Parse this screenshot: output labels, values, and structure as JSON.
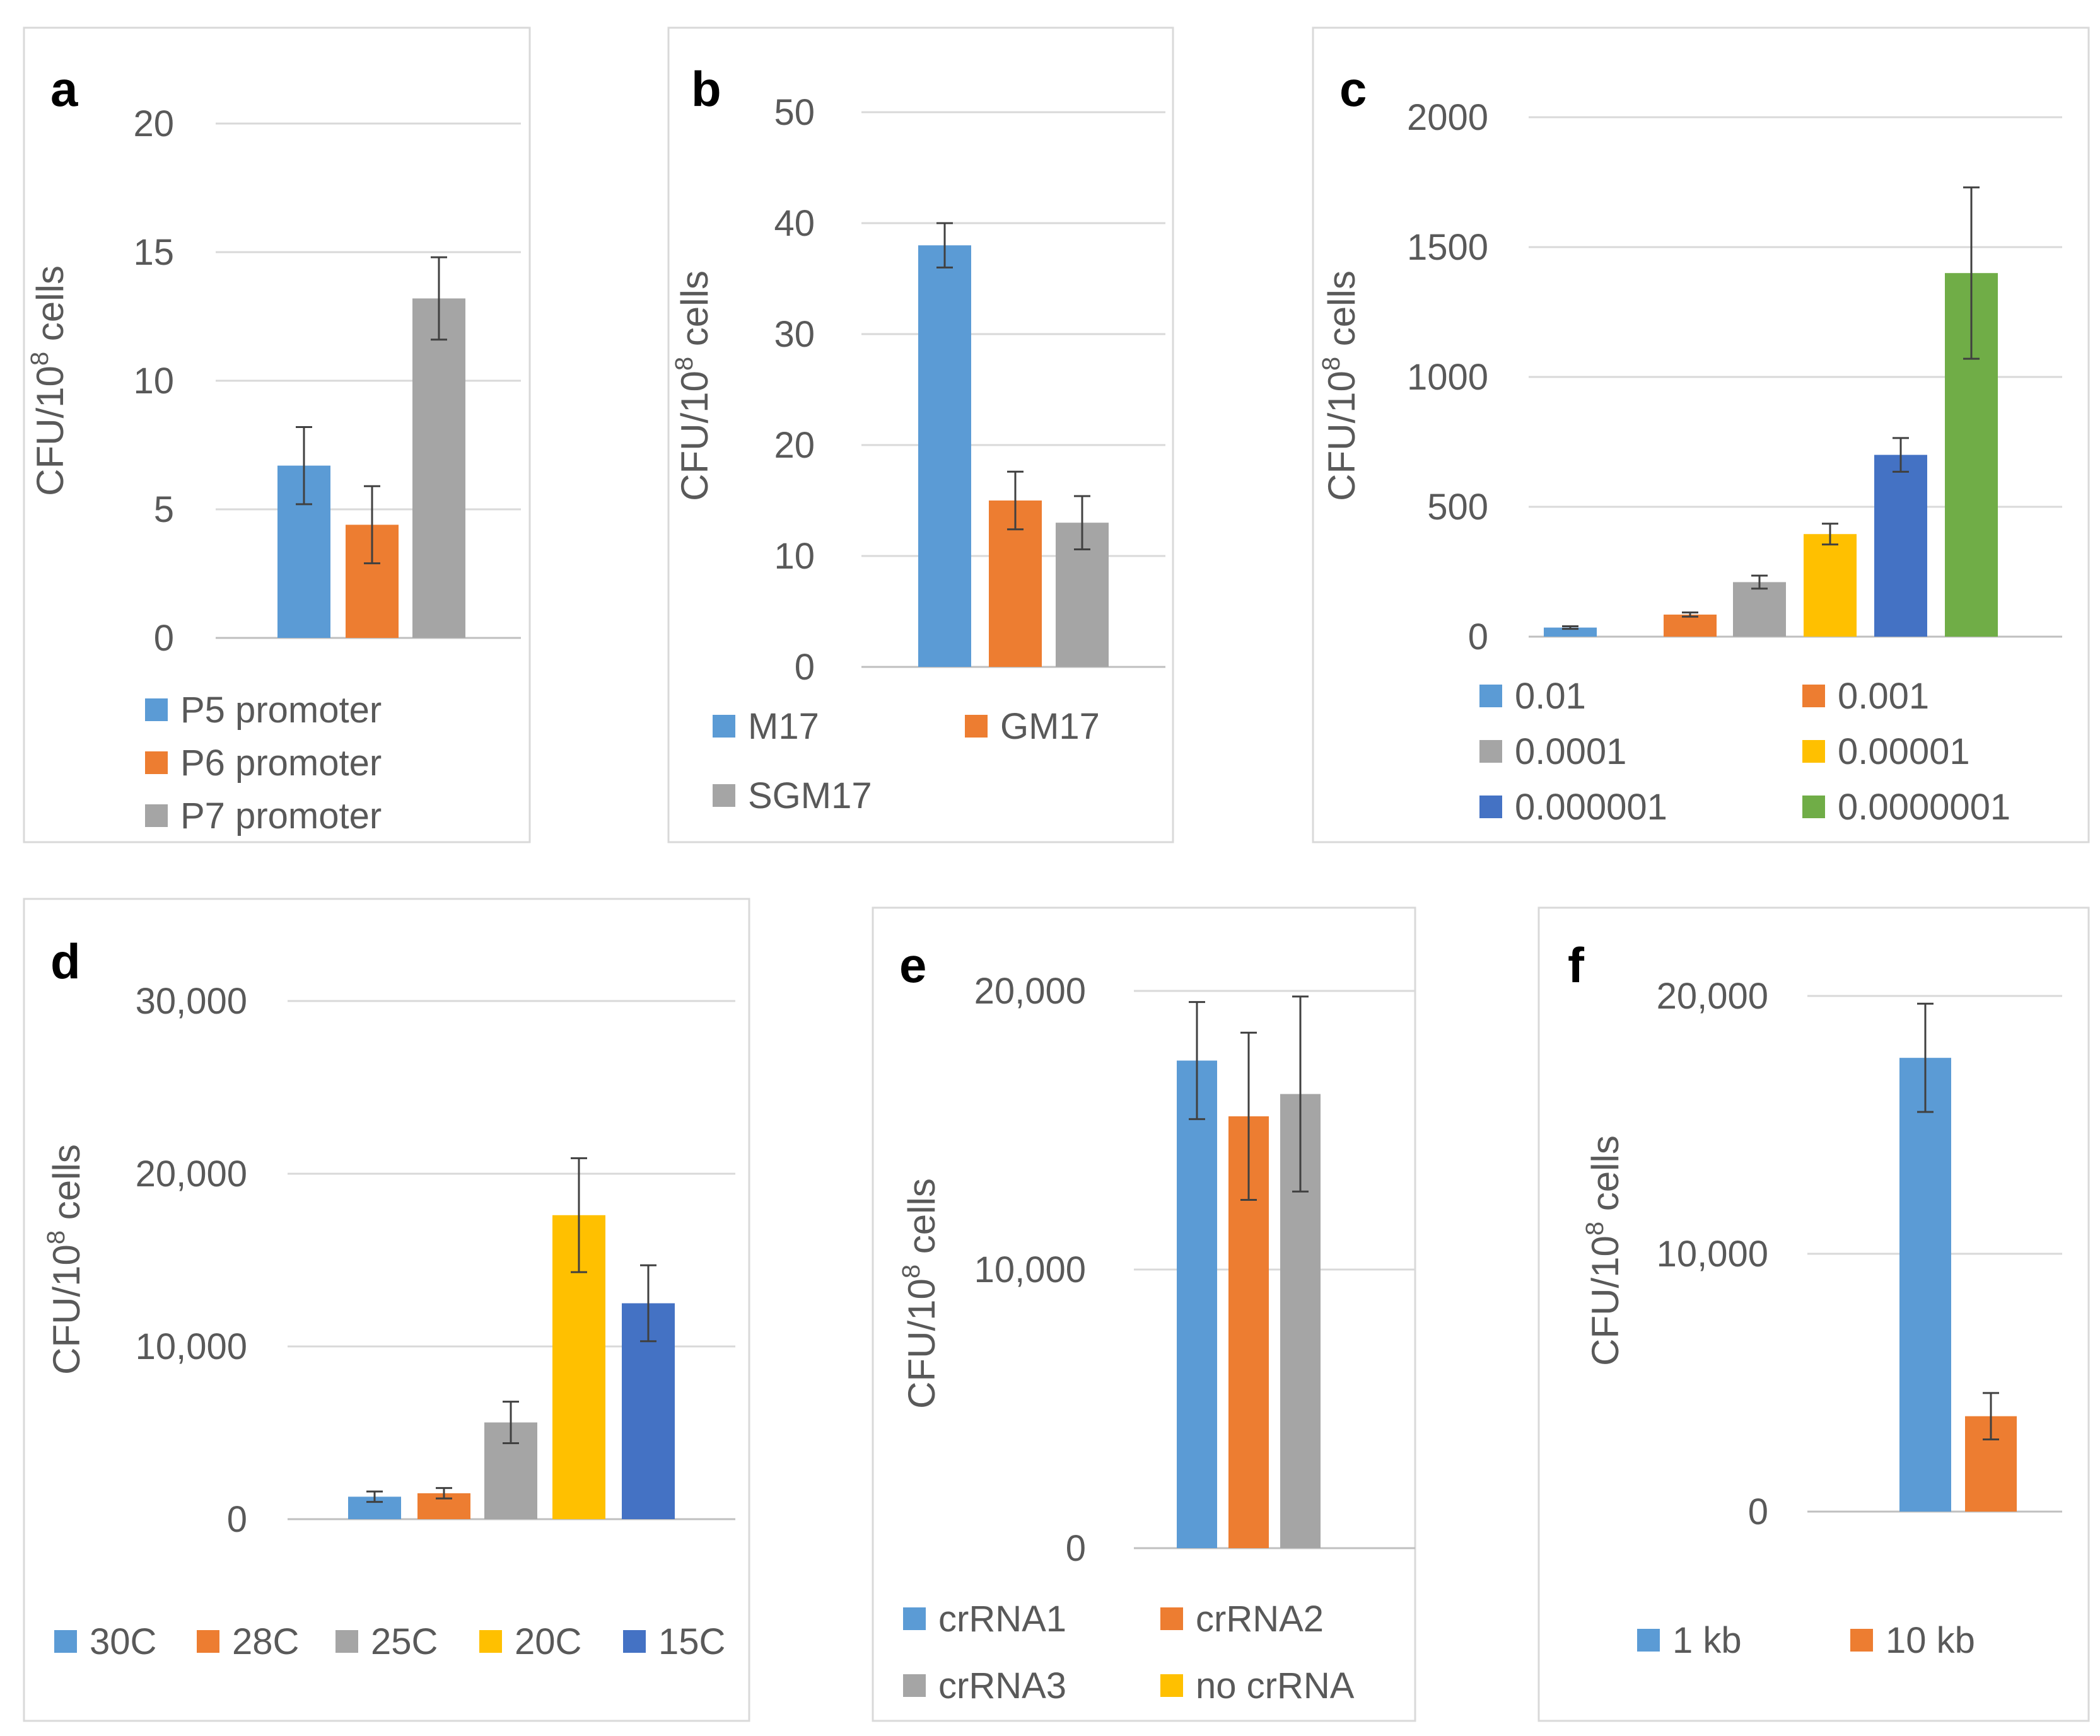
{
  "chart_data": [
    {
      "type": "bar",
      "panel_label": "a",
      "ylabel_prefix": "CFU/10",
      "ylabel_sup": "8",
      "ylabel_suffix": " cells",
      "ylim": [
        0,
        20
      ],
      "y_ticks": [
        0,
        5,
        10,
        15,
        20
      ],
      "y_tick_labels": [
        "0",
        "5",
        "10",
        "15",
        "20"
      ],
      "series": [
        {
          "name": "P5 promoter",
          "value": 6.7,
          "error": 1.5,
          "color": "#5B9BD5"
        },
        {
          "name": "P6 promoter",
          "value": 4.4,
          "error": 1.5,
          "color": "#ED7D31"
        },
        {
          "name": "P7 promoter",
          "value": 13.2,
          "error": 1.6,
          "color": "#A5A5A5"
        }
      ]
    },
    {
      "type": "bar",
      "panel_label": "b",
      "ylabel_prefix": "CFU/10",
      "ylabel_sup": "8",
      "ylabel_suffix": " cells",
      "ylim": [
        0,
        50
      ],
      "y_ticks": [
        0,
        10,
        20,
        30,
        40,
        50
      ],
      "y_tick_labels": [
        "0",
        "10",
        "20",
        "30",
        "40",
        "50"
      ],
      "series": [
        {
          "name": "M17",
          "value": 38,
          "error": 2,
          "color": "#5B9BD5"
        },
        {
          "name": "GM17",
          "value": 15,
          "error": 2.6,
          "color": "#ED7D31"
        },
        {
          "name": "SGM17",
          "value": 13,
          "error": 2.4,
          "color": "#A5A5A5"
        }
      ]
    },
    {
      "type": "bar",
      "panel_label": "c",
      "ylabel_prefix": "CFU/10",
      "ylabel_sup": "8",
      "ylabel_suffix": " cells",
      "ylim": [
        0,
        2000
      ],
      "y_ticks": [
        0,
        500,
        1000,
        1500,
        2000
      ],
      "y_tick_labels": [
        "0",
        "500",
        "1000",
        "1500",
        "2000"
      ],
      "series": [
        {
          "name": "0.01",
          "value": 35,
          "error": 5,
          "color": "#5B9BD5"
        },
        {
          "name": "0.001",
          "value": 85,
          "error": 8,
          "color": "#ED7D31"
        },
        {
          "name": "0.0001",
          "value": 210,
          "error": 25,
          "color": "#A5A5A5"
        },
        {
          "name": "0.00001",
          "value": 395,
          "error": 40,
          "color": "#FFC000"
        },
        {
          "name": "0.000001",
          "value": 700,
          "error": 65,
          "color": "#4472C4"
        },
        {
          "name": "0.0000001",
          "value": 1400,
          "error": 330,
          "color": "#70AD47"
        }
      ]
    },
    {
      "type": "bar",
      "panel_label": "d",
      "ylabel_prefix": "CFU/10",
      "ylabel_sup": "8",
      "ylabel_suffix": " cells",
      "ylim": [
        0,
        30000
      ],
      "y_ticks": [
        0,
        10000,
        20000,
        30000
      ],
      "y_tick_labels": [
        "0",
        "10,000",
        "20,000",
        "30,000"
      ],
      "series": [
        {
          "name": "30C",
          "value": 1300,
          "error": 300,
          "color": "#5B9BD5"
        },
        {
          "name": "28C",
          "value": 1500,
          "error": 300,
          "color": "#ED7D31"
        },
        {
          "name": "25C",
          "value": 5600,
          "error": 1200,
          "color": "#A5A5A5"
        },
        {
          "name": "20C",
          "value": 17600,
          "error": 3300,
          "color": "#FFC000"
        },
        {
          "name": "15C",
          "value": 12500,
          "error": 2200,
          "color": "#4472C4"
        }
      ]
    },
    {
      "type": "bar",
      "panel_label": "e",
      "ylabel_prefix": "CFU/10",
      "ylabel_sup": "8",
      "ylabel_suffix": " cells",
      "ylim": [
        0,
        20000
      ],
      "y_ticks": [
        0,
        10000,
        20000
      ],
      "y_tick_labels": [
        "0",
        "10,000",
        "20,000"
      ],
      "series": [
        {
          "name": "crRNA1",
          "value": 17500,
          "error": 2100,
          "color": "#5B9BD5"
        },
        {
          "name": "crRNA2",
          "value": 15500,
          "error": 3000,
          "color": "#ED7D31"
        },
        {
          "name": "crRNA3",
          "value": 16300,
          "error": 3500,
          "color": "#A5A5A5"
        },
        {
          "name": "no crRNA",
          "value": 0,
          "error": 0,
          "color": "#FFC000"
        }
      ]
    },
    {
      "type": "bar",
      "panel_label": "f",
      "ylabel_prefix": "CFU/10",
      "ylabel_sup": "8",
      "ylabel_suffix": " cells",
      "ylim": [
        0,
        20000
      ],
      "y_ticks": [
        0,
        10000,
        20000
      ],
      "y_tick_labels": [
        "0",
        "10,000",
        "20,000"
      ],
      "series": [
        {
          "name": "1 kb",
          "value": 17600,
          "error": 2100,
          "color": "#5B9BD5"
        },
        {
          "name": "10 kb",
          "value": 3700,
          "error": 900,
          "color": "#ED7D31"
        }
      ]
    }
  ]
}
